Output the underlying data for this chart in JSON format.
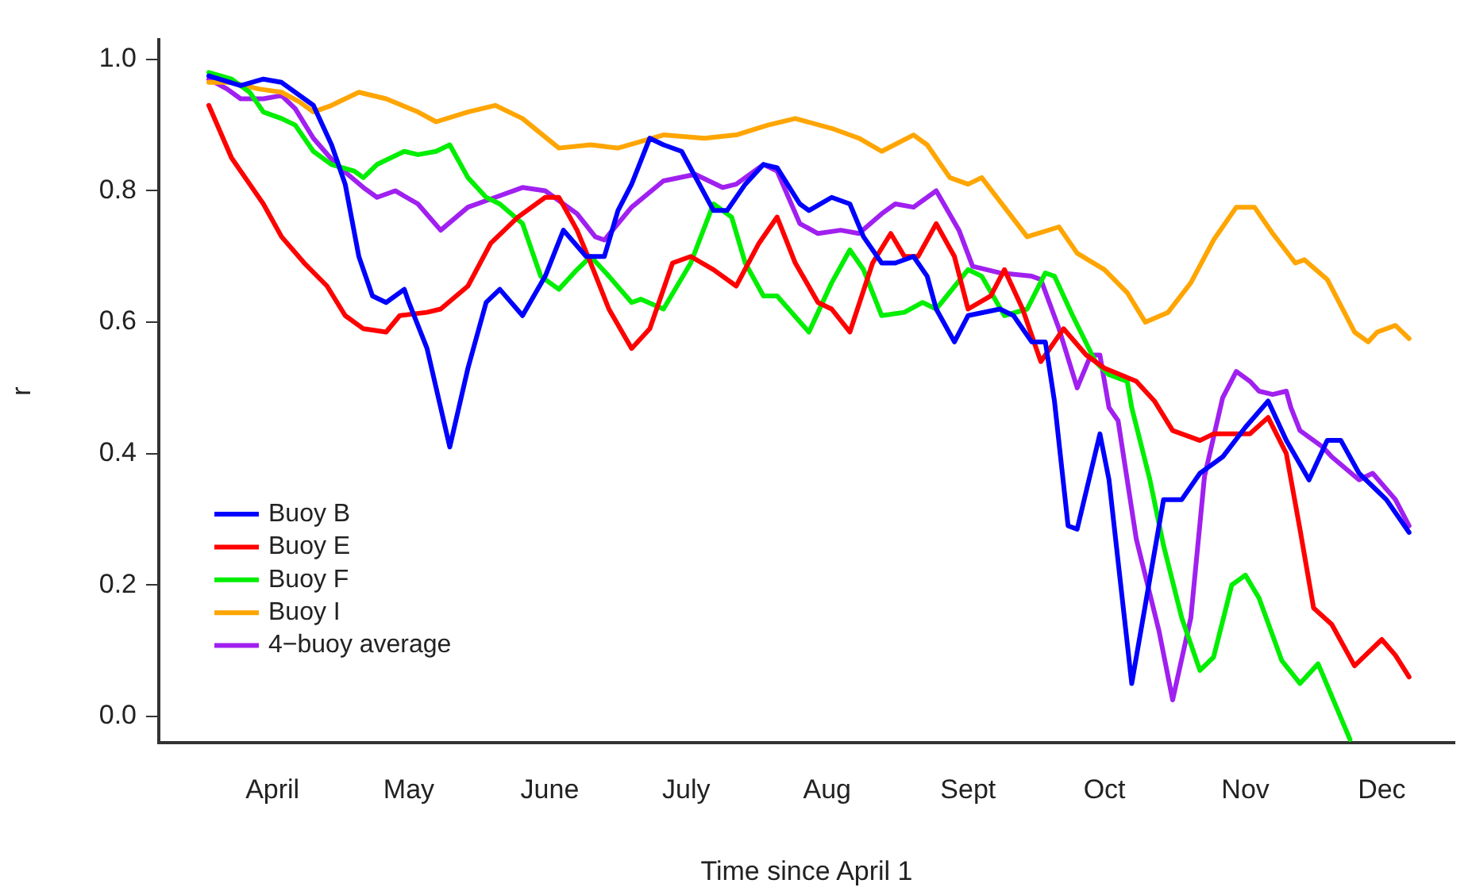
{
  "chart_data": {
    "type": "line",
    "xlabel": "Time since April 1",
    "ylabel": "r",
    "xlim": [
      "--03-21",
      "--12-31"
    ],
    "ylim": [
      -0.04,
      1.03
    ],
    "xticks": [
      {
        "value": "--04-15",
        "label": "April"
      },
      {
        "value": "--05-15",
        "label": "May"
      },
      {
        "value": "--06-15",
        "label": "June"
      },
      {
        "value": "--07-15",
        "label": "July"
      },
      {
        "value": "--08-15",
        "label": "Aug"
      },
      {
        "value": "--09-15",
        "label": "Sept"
      },
      {
        "value": "--10-15",
        "label": "Oct"
      },
      {
        "value": "--11-15",
        "label": "Nov"
      },
      {
        "value": "--12-15",
        "label": "Dec"
      }
    ],
    "yticks": [
      {
        "value": 0,
        "label": "0.0"
      },
      {
        "value": 0.2,
        "label": "0.2"
      },
      {
        "value": 0.4,
        "label": "0.4"
      },
      {
        "value": 0.6,
        "label": "0.6"
      },
      {
        "value": 0.8,
        "label": "0.8"
      },
      {
        "value": 1,
        "label": "1.0"
      }
    ],
    "legend": "bottom left",
    "marker": "none",
    "line_style": "solid",
    "series": [
      {
        "name": "Buoy B",
        "color": "#0000ff",
        "x": [
          "--04-01",
          "--04-08",
          "--04-13",
          "--04-17",
          "--04-24",
          "--04-28",
          "--05-01",
          "--05-04",
          "--05-07",
          "--05-10",
          "--05-14",
          "--05-15",
          "--05-19",
          "--05-24",
          "--05-28",
          "--06-01",
          "--06-04",
          "--06-09",
          "--06-14",
          "--06-18",
          "--06-23",
          "--06-27",
          "--06-30",
          "--07-03",
          "--07-07",
          "--07-10",
          "--07-14",
          "--07-21",
          "--07-24",
          "--07-28",
          "--08-01",
          "--08-04",
          "--08-09",
          "--08-11",
          "--08-16",
          "--08-20",
          "--08-23",
          "--08-27",
          "--08-30",
          "--09-03",
          "--09-06",
          "--09-08",
          "--09-12",
          "--09-15",
          "--09-22",
          "--09-25",
          "--09-29",
          "--10-02",
          "--10-04",
          "--10-07",
          "--10-09",
          "--10-14",
          "--10-16",
          "--10-21",
          "--10-28",
          "--11-01",
          "--11-05",
          "--11-10",
          "--11-15",
          "--11-20",
          "--11-24",
          "--11-29",
          "--12-03",
          "--12-06",
          "--12-10",
          "--12-16",
          "--12-21"
        ],
        "values": [
          0.975,
          0.96,
          0.97,
          0.965,
          0.93,
          0.87,
          0.81,
          0.7,
          0.64,
          0.63,
          0.65,
          0.63,
          0.56,
          0.41,
          0.53,
          0.63,
          0.65,
          0.61,
          0.67,
          0.74,
          0.7,
          0.7,
          0.77,
          0.81,
          0.88,
          0.87,
          0.86,
          0.77,
          0.77,
          0.81,
          0.84,
          0.835,
          0.78,
          0.77,
          0.79,
          0.78,
          0.73,
          0.69,
          0.69,
          0.7,
          0.67,
          0.62,
          0.57,
          0.61,
          0.62,
          0.61,
          0.57,
          0.57,
          0.48,
          0.29,
          0.285,
          0.43,
          0.36,
          0.05,
          0.33,
          0.33,
          0.37,
          0.395,
          0.44,
          0.48,
          0.42,
          0.36,
          0.42,
          0.42,
          0.37,
          0.33,
          0.28
        ]
      },
      {
        "name": "Buoy E",
        "color": "#ff0000",
        "x": [
          "--04-01",
          "--04-06",
          "--04-10",
          "--04-13",
          "--04-17",
          "--04-22",
          "--04-27",
          "--05-01",
          "--05-05",
          "--05-10",
          "--05-13",
          "--05-19",
          "--05-22",
          "--05-28",
          "--06-02",
          "--06-08",
          "--06-14",
          "--06-17",
          "--06-21",
          "--06-24",
          "--06-28",
          "--07-03",
          "--07-07",
          "--07-12",
          "--07-16",
          "--07-21",
          "--07-26",
          "--07-31",
          "--08-04",
          "--08-08",
          "--08-13",
          "--08-16",
          "--08-20",
          "--08-25",
          "--08-29",
          "--09-01",
          "--09-04",
          "--09-08",
          "--09-12",
          "--09-15",
          "--09-20",
          "--09-23",
          "--09-27",
          "--10-01",
          "--10-06",
          "--10-11",
          "--10-15",
          "--10-22",
          "--10-26",
          "--10-30",
          "--11-05",
          "--11-08",
          "--11-16",
          "--11-20",
          "--11-24",
          "--11-27",
          "--11-30",
          "--12-04",
          "--12-09",
          "--12-15",
          "--12-18",
          "--12-21"
        ],
        "values": [
          0.93,
          0.85,
          0.81,
          0.78,
          0.73,
          0.69,
          0.655,
          0.61,
          0.59,
          0.585,
          0.61,
          0.615,
          0.62,
          0.655,
          0.72,
          0.76,
          0.79,
          0.79,
          0.74,
          0.69,
          0.62,
          0.56,
          0.59,
          0.69,
          0.7,
          0.68,
          0.655,
          0.72,
          0.76,
          0.69,
          0.63,
          0.62,
          0.585,
          0.69,
          0.735,
          0.7,
          0.7,
          0.75,
          0.7,
          0.62,
          0.64,
          0.68,
          0.62,
          0.54,
          0.59,
          0.55,
          0.53,
          0.51,
          0.48,
          0.435,
          0.42,
          0.43,
          0.43,
          0.455,
          0.4,
          0.285,
          0.165,
          0.14,
          0.077,
          0.117,
          0.093,
          0.06
        ]
      },
      {
        "name": "Buoy F",
        "color": "#00ee00",
        "x": [
          "--04-01",
          "--04-06",
          "--04-10",
          "--04-13",
          "--04-17",
          "--04-20",
          "--04-24",
          "--04-28",
          "--05-03",
          "--05-05",
          "--05-08",
          "--05-14",
          "--05-17",
          "--05-21",
          "--05-24",
          "--05-28",
          "--06-01",
          "--06-04",
          "--06-09",
          "--06-13",
          "--06-17",
          "--06-21",
          "--06-24",
          "--06-28",
          "--07-03",
          "--07-05",
          "--07-10",
          "--07-16",
          "--07-21",
          "--07-25",
          "--07-28",
          "--08-01",
          "--08-04",
          "--08-11",
          "--08-16",
          "--08-20",
          "--08-23",
          "--08-27",
          "--09-01",
          "--09-05",
          "--09-08",
          "--09-15",
          "--09-18",
          "--09-23",
          "--09-28",
          "--10-02",
          "--10-04",
          "--10-08",
          "--10-13",
          "--10-16",
          "--10-20",
          "--10-21",
          "--10-25",
          "--10-28",
          "--11-01",
          "--11-05",
          "--11-08",
          "--11-12",
          "--11-15",
          "--11-18",
          "--11-23",
          "--11-27",
          "--12-01",
          "--12-08"
        ],
        "values": [
          0.98,
          0.97,
          0.95,
          0.92,
          0.91,
          0.9,
          0.86,
          0.84,
          0.83,
          0.82,
          0.84,
          0.86,
          0.855,
          0.86,
          0.87,
          0.82,
          0.79,
          0.78,
          0.75,
          0.67,
          0.65,
          0.68,
          0.7,
          0.67,
          0.63,
          0.635,
          0.62,
          0.69,
          0.78,
          0.76,
          0.69,
          0.64,
          0.64,
          0.585,
          0.66,
          0.71,
          0.68,
          0.61,
          0.615,
          0.63,
          0.62,
          0.68,
          0.67,
          0.61,
          0.62,
          0.675,
          0.67,
          0.61,
          0.54,
          0.52,
          0.51,
          0.47,
          0.36,
          0.26,
          0.15,
          0.07,
          0.09,
          0.2,
          0.215,
          0.18,
          0.085,
          0.05,
          0.08,
          -0.035
        ]
      },
      {
        "name": "Buoy I",
        "color": "#ffa500",
        "x": [
          "--04-01",
          "--04-06",
          "--04-12",
          "--04-17",
          "--04-21",
          "--04-24",
          "--04-28",
          "--05-04",
          "--05-10",
          "--05-17",
          "--05-21",
          "--05-28",
          "--06-03",
          "--06-09",
          "--06-17",
          "--06-24",
          "--06-30",
          "--07-10",
          "--07-19",
          "--07-26",
          "--08-02",
          "--08-08",
          "--08-16",
          "--08-22",
          "--08-27",
          "--09-03",
          "--09-06",
          "--09-11",
          "--09-15",
          "--09-18",
          "--09-23",
          "--09-28",
          "--10-05",
          "--10-09",
          "--10-15",
          "--10-20",
          "--10-24",
          "--10-29",
          "--11-03",
          "--11-08",
          "--11-13",
          "--11-17",
          "--11-21",
          "--11-26",
          "--11-28",
          "--12-03",
          "--12-09",
          "--12-12",
          "--12-14",
          "--12-18",
          "--12-21"
        ],
        "values": [
          0.965,
          0.965,
          0.955,
          0.95,
          0.935,
          0.92,
          0.93,
          0.95,
          0.94,
          0.92,
          0.905,
          0.92,
          0.93,
          0.91,
          0.865,
          0.87,
          0.865,
          0.885,
          0.88,
          0.885,
          0.9,
          0.91,
          0.895,
          0.88,
          0.86,
          0.885,
          0.87,
          0.82,
          0.81,
          0.82,
          0.775,
          0.73,
          0.745,
          0.705,
          0.68,
          0.645,
          0.6,
          0.615,
          0.66,
          0.725,
          0.775,
          0.775,
          0.735,
          0.69,
          0.695,
          0.665,
          0.585,
          0.57,
          0.585,
          0.595,
          0.575
        ]
      },
      {
        "name": "4−buoy average",
        "color": "#a020f0",
        "x": [
          "--04-01",
          "--04-05",
          "--04-08",
          "--04-13",
          "--04-17",
          "--04-20",
          "--04-24",
          "--04-29",
          "--05-05",
          "--05-08",
          "--05-12",
          "--05-17",
          "--05-22",
          "--05-28",
          "--06-03",
          "--06-09",
          "--06-14",
          "--06-21",
          "--06-25",
          "--06-27",
          "--07-03",
          "--07-10",
          "--07-17",
          "--07-23",
          "--07-26",
          "--08-01",
          "--08-04",
          "--08-09",
          "--08-13",
          "--08-18",
          "--08-22",
          "--08-27",
          "--08-30",
          "--09-03",
          "--09-08",
          "--09-13",
          "--09-16",
          "--09-22",
          "--09-29",
          "--10-01",
          "--10-05",
          "--10-09",
          "--10-12",
          "--10-14",
          "--10-16",
          "--10-18",
          "--10-22",
          "--10-27",
          "--10-30",
          "--11-03",
          "--11-06",
          "--11-10",
          "--11-13",
          "--11-16",
          "--11-18",
          "--11-21",
          "--11-24",
          "--11-25",
          "--11-27",
          "--12-02",
          "--12-04",
          "--12-10",
          "--12-13",
          "--12-18",
          "--12-21"
        ],
        "values": [
          0.97,
          0.955,
          0.94,
          0.94,
          0.945,
          0.925,
          0.88,
          0.84,
          0.805,
          0.79,
          0.8,
          0.78,
          0.74,
          0.775,
          0.79,
          0.805,
          0.8,
          0.765,
          0.73,
          0.725,
          0.775,
          0.815,
          0.825,
          0.805,
          0.81,
          0.84,
          0.83,
          0.75,
          0.735,
          0.74,
          0.735,
          0.765,
          0.78,
          0.775,
          0.8,
          0.74,
          0.685,
          0.675,
          0.67,
          0.665,
          0.59,
          0.5,
          0.55,
          0.55,
          0.47,
          0.45,
          0.27,
          0.13,
          0.025,
          0.15,
          0.365,
          0.485,
          0.525,
          0.51,
          0.495,
          0.49,
          0.495,
          0.47,
          0.435,
          0.41,
          0.395,
          0.36,
          0.37,
          0.33,
          0.29
        ]
      }
    ]
  }
}
